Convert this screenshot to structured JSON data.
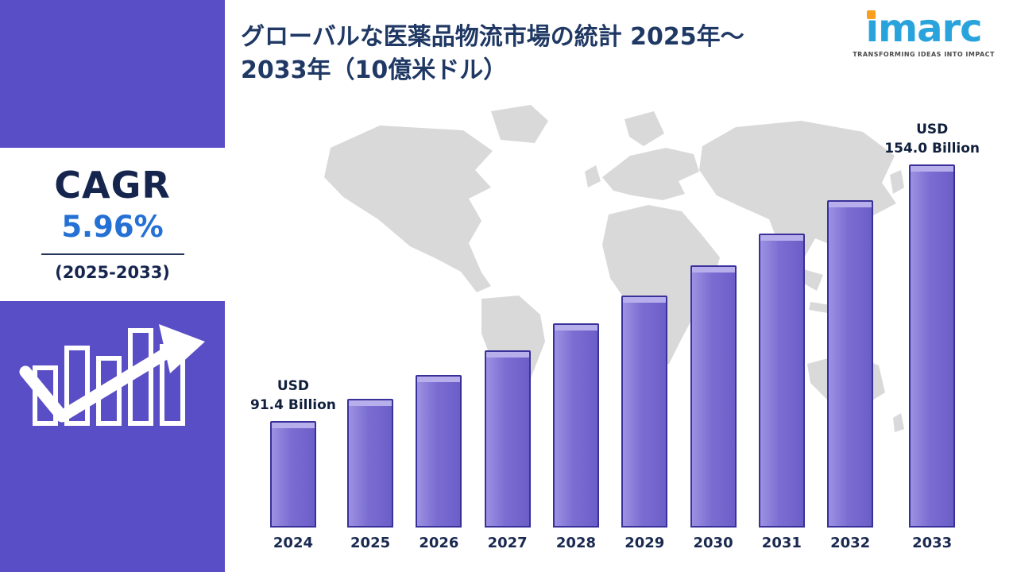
{
  "sidebar": {
    "cagr_label": "CAGR",
    "cagr_value": "5.96%",
    "period": "(2025-2033)"
  },
  "header": {
    "title_line1": "グローバルな医薬品物流市場の統計 2025年～",
    "title_line2": "2033年（10億米ドル）"
  },
  "brand": {
    "name": "imarc",
    "tagline": "TRANSFORMING IDEAS INTO IMPACT"
  },
  "icons": {
    "sidebar_icon": "growth-trend-icon",
    "background_graphic": "world-map"
  },
  "colors": {
    "sidebar_purple": "#5A4EC6",
    "cagr_blue": "#2570D4",
    "title_navy": "#1F3864",
    "logo_blue": "#29A3DC",
    "logo_orange": "#F8A01E",
    "map_gray": "#D9D9D9",
    "bar_fill": "#7A6DD2",
    "bar_border": "#39319A"
  },
  "chart_data": {
    "type": "bar",
    "title": "グローバルな医薬品物流市場の統計 2025年～2033年（10億米ドル）",
    "units": "USD Billion",
    "categories": [
      "2024",
      "2025",
      "2026",
      "2027",
      "2028",
      "2029",
      "2030",
      "2031",
      "2032",
      "2033"
    ],
    "values": [
      91.4,
      96.8,
      102.6,
      108.7,
      115.2,
      122.1,
      129.4,
      137.1,
      145.2,
      154.0
    ],
    "labeled_points": [
      {
        "category": "2024",
        "line1": "USD",
        "line2": "91.4 Billion"
      },
      {
        "category": "2033",
        "line1": "USD",
        "line2": "154.0 Billion"
      }
    ],
    "xlabel": "",
    "ylabel": "",
    "value_axis_hidden": true,
    "grid": false,
    "legend": false,
    "baseline_value_estimate": 65
  }
}
